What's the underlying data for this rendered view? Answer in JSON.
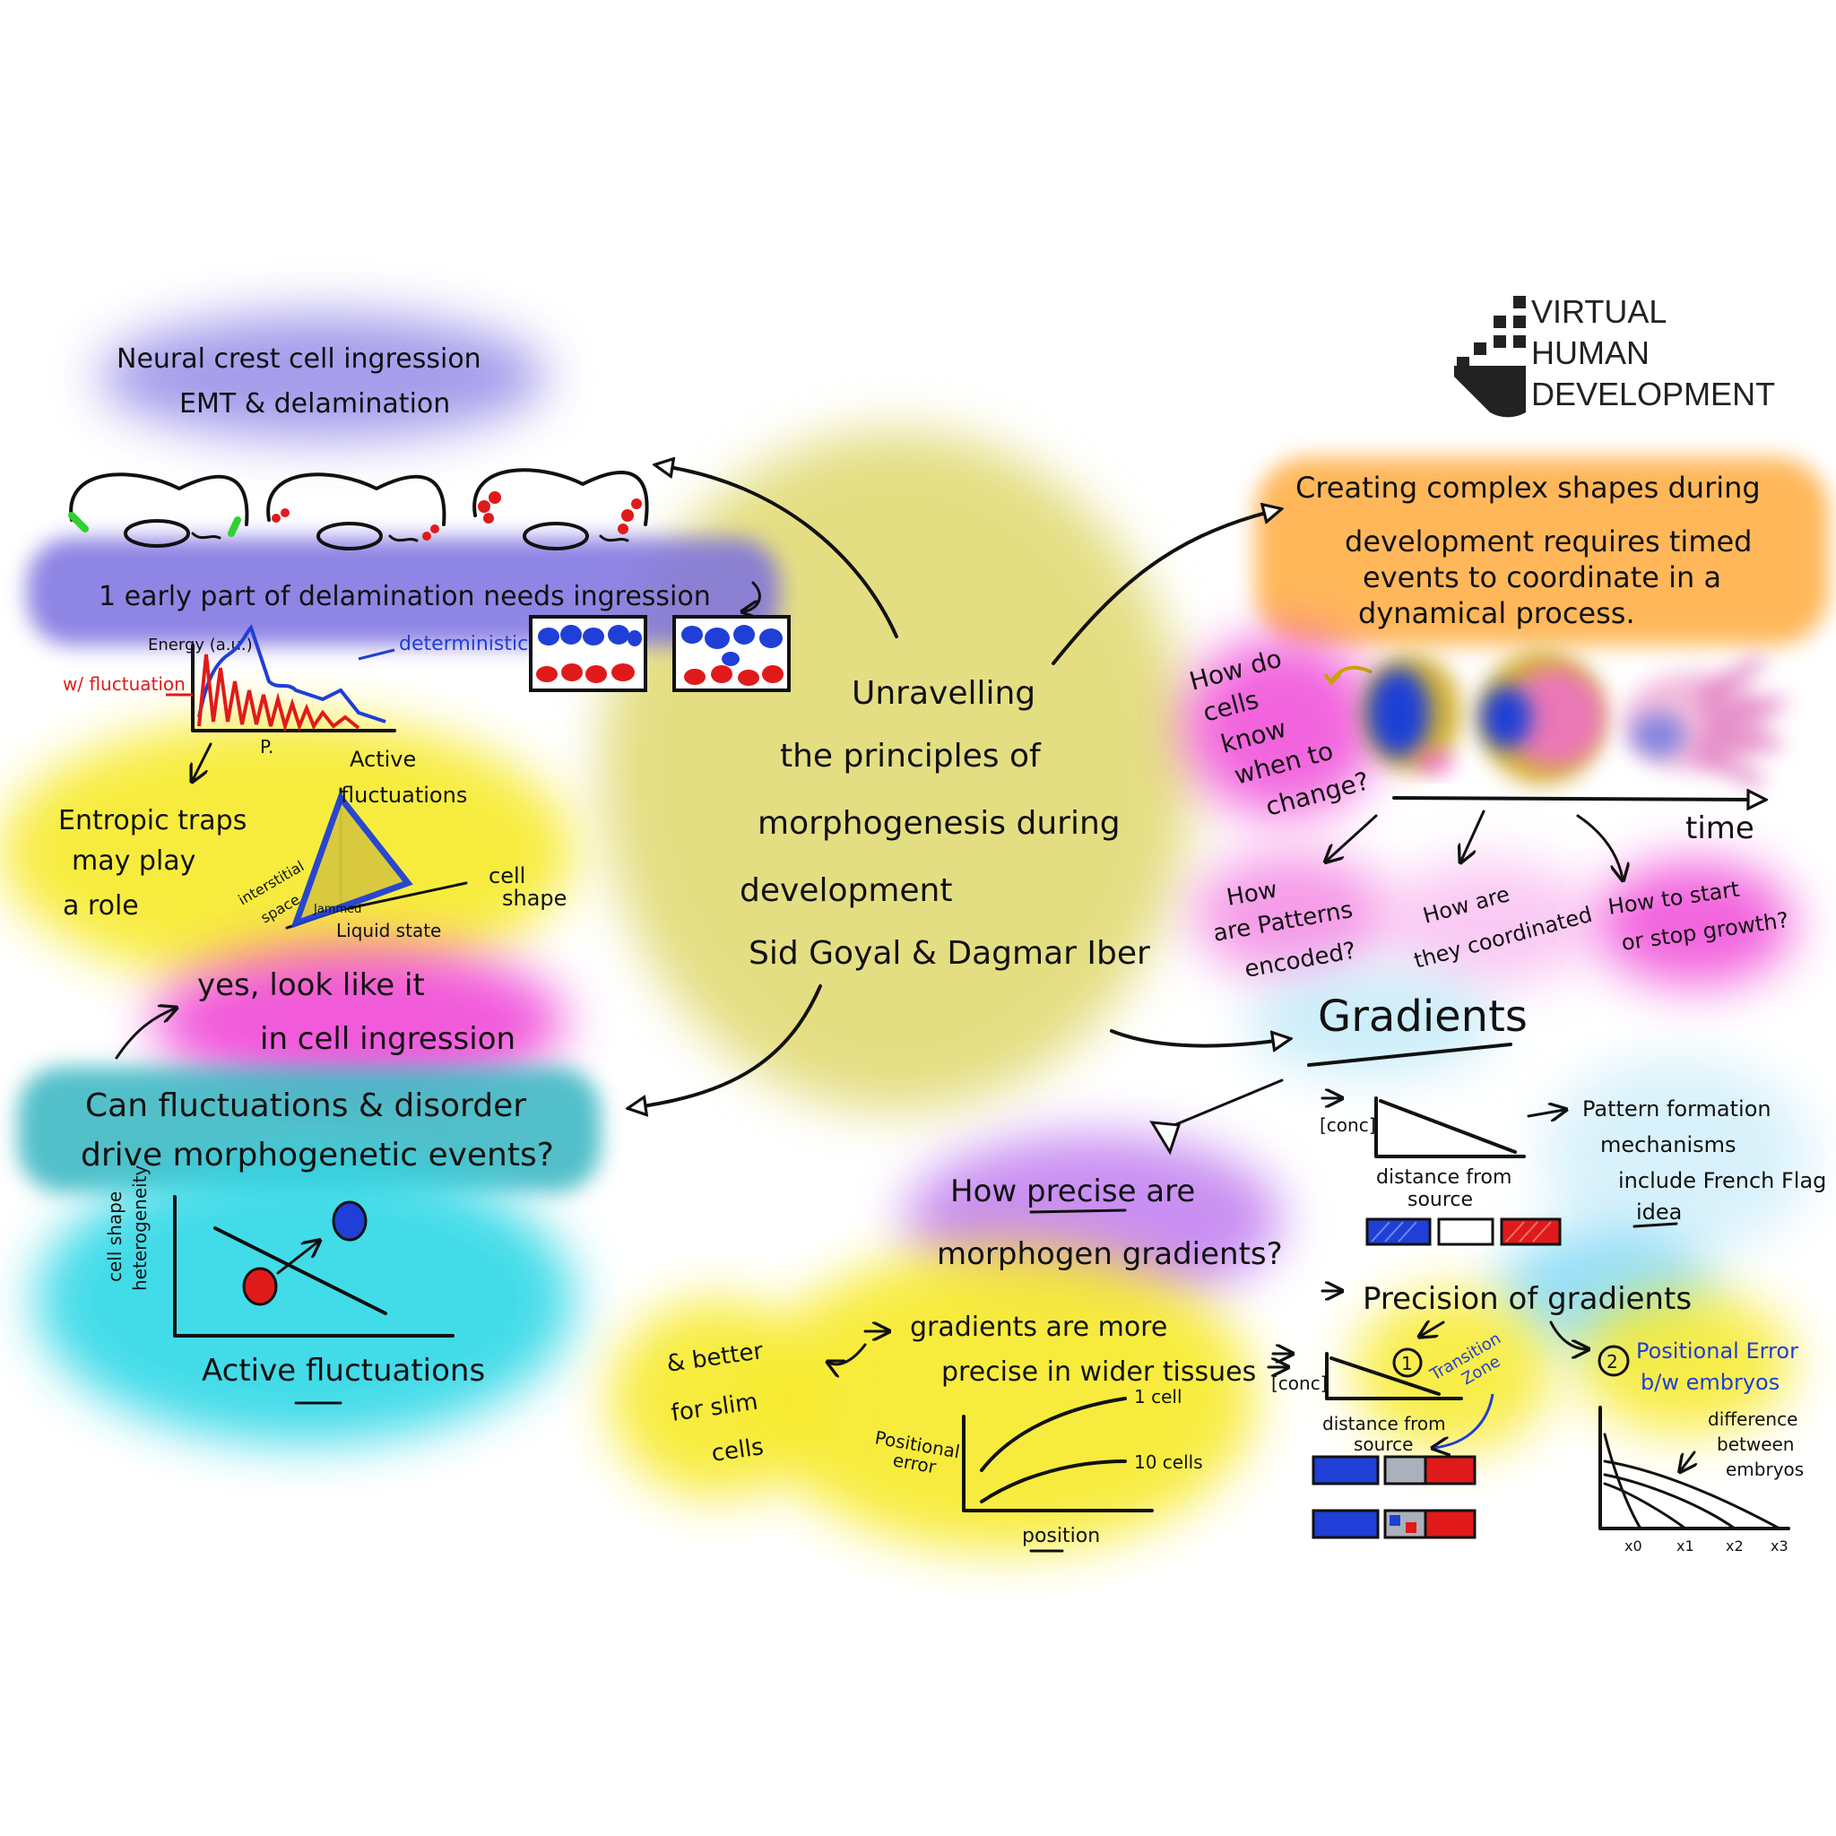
{
  "logo": {
    "line1": "VIRTUAL",
    "line2": "HUMAN",
    "line3": "DEVELOPMENT"
  },
  "center": {
    "line1": "Unravelling",
    "line2": "the principles of",
    "line3": "morphogenesis during",
    "line4": "development",
    "authors": "Sid Goyal & Dagmar Iber"
  },
  "neural": {
    "title1": "Neural crest cell ingression",
    "title2": "EMT & delamination",
    "point1": "1  early part of delamination needs ingression",
    "energy_label": "Energy (a.u.)",
    "x_label": "P.",
    "deterministic": "deterministic",
    "fluctuation": "w/ fluctuation"
  },
  "entropic": {
    "text1": "Entropic traps",
    "text2": "may play",
    "text3": "a role",
    "active_fluct1": "Active",
    "active_fluct2": "fluctuations",
    "cell_shape1": "cell",
    "cell_shape2": "shape",
    "interstitial1": "interstitial",
    "interstitial2": "space",
    "jammed": "Jammed",
    "liquid": "Liquid state"
  },
  "yes_text": {
    "line1": "yes, look like it",
    "line2": "in cell ingression"
  },
  "fluct_q": {
    "line1": "Can fluctuations & disorder",
    "line2": "drive morphogenetic events?",
    "ylabel1": "cell shape",
    "ylabel2": "heterogeneity",
    "xlabel": "Active fluctuations"
  },
  "complex": {
    "line1": "Creating complex shapes during",
    "line2": "development requires timed",
    "line3": "events to coordinate in a",
    "line4": "dynamical process."
  },
  "how_cells": {
    "l1": "How do",
    "l2": "cells",
    "l3": "know",
    "l4": "when to",
    "l5": "change?"
  },
  "time_label": "time",
  "questions": {
    "patterns1": "How",
    "patterns2": "are Patterns",
    "patterns3": "encoded?",
    "coord1": "How are",
    "coord2": "they coordinated",
    "growth1": "How to start",
    "growth2": "or stop growth?"
  },
  "gradients": {
    "title": "Gradients",
    "conc": "[conc]",
    "distance1": "distance from",
    "distance2": "source",
    "pattern1": "Pattern formation",
    "pattern2": "mechanisms",
    "pattern3": "include French Flag",
    "pattern4": "idea"
  },
  "precise_q": {
    "line1": "How precise are",
    "line2": "morphogen gradients?"
  },
  "precision": {
    "title": "Precision of gradients",
    "one": "1",
    "transition1": "Transition",
    "transition2": "Zone",
    "two": "2",
    "positional1": "Positional Error",
    "positional2": "b/w embryos",
    "diff1": "difference",
    "diff2": "between",
    "diff3": "embryos",
    "x0": "x0",
    "x1": "x1",
    "x2": "x2",
    "x3": "x3"
  },
  "wider": {
    "line1": "gradients are more",
    "line2": "precise in wider tissues",
    "ylabel1": "Positional",
    "ylabel2": "error",
    "c1": "1 cell",
    "c10": "10 cells",
    "xlabel": "position"
  },
  "slim": {
    "line1": "& better",
    "line2": "for slim",
    "line3": "cells"
  },
  "colors": {
    "purple": "#7b6fe0",
    "yellow": "#f7ea2a",
    "olive": "#d8cf55",
    "magenta": "#f04ad8",
    "teal": "#3fb9c4",
    "cyan": "#2fd8e6",
    "orange": "#ffb04a",
    "lilac": "#c07cf0",
    "blue": "#1f3fd6",
    "red": "#e01a1a"
  }
}
